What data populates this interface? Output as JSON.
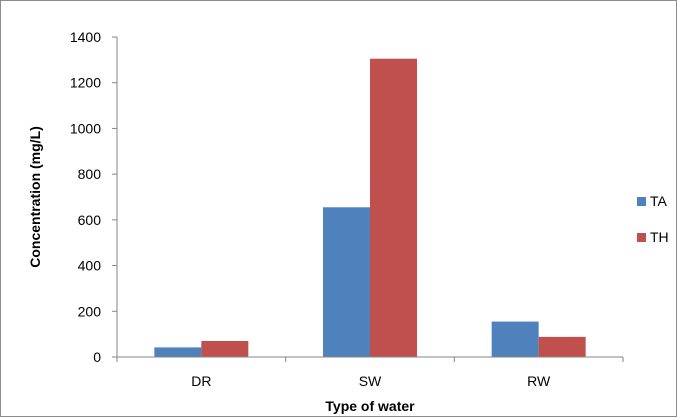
{
  "chart_data": {
    "type": "bar",
    "categories": [
      "DR",
      "SW",
      "RW"
    ],
    "series": [
      {
        "name": "TA",
        "values": [
          42,
          655,
          155
        ],
        "color": "#4f81bd"
      },
      {
        "name": "TH",
        "values": [
          70,
          1305,
          88
        ],
        "color": "#c0504d"
      }
    ],
    "xlabel": "Type of water",
    "ylabel": "Concentration  (mg/L)",
    "ylim": [
      0,
      1400
    ],
    "yticks": [
      "0",
      "200",
      "400",
      "600",
      "800",
      "1000",
      "1200",
      "1400"
    ],
    "grid": false,
    "legend_position": "right"
  }
}
